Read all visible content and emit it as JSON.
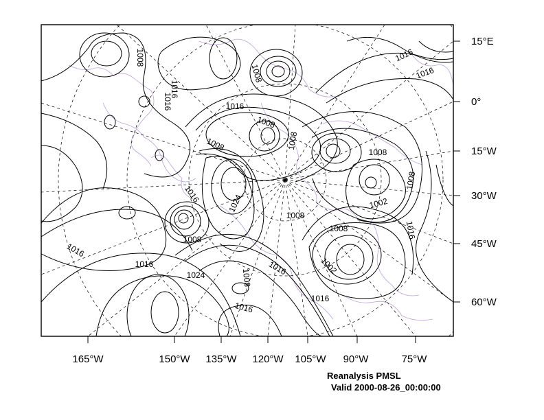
{
  "map": {
    "bottom_axis_labels": [
      "165°W",
      "150°W",
      "135°W",
      "120°W",
      "105°W",
      "90°W",
      "75°W"
    ],
    "right_axis_labels": [
      "15°E",
      "0°",
      "15°W",
      "30°W",
      "45°W",
      "60°W"
    ],
    "contour_labels": [
      "1008",
      "1016",
      "1008",
      "1016",
      "1016",
      "1016",
      "1008",
      "1008",
      "1008",
      "1016",
      "1024",
      "1008",
      "1008",
      "1008",
      "1008",
      "1002",
      "1016",
      "1008",
      "1002",
      "1016",
      "1016",
      "1016",
      "1024",
      "1016",
      "1008",
      "1016",
      "1016"
    ],
    "line_color": "#000000",
    "coastline_color": "#b9a3d6",
    "grid_style": "dashed"
  },
  "caption": {
    "title": "Reanalysis PMSL",
    "valid": "Valid 2000-08-26_00:00:00"
  }
}
